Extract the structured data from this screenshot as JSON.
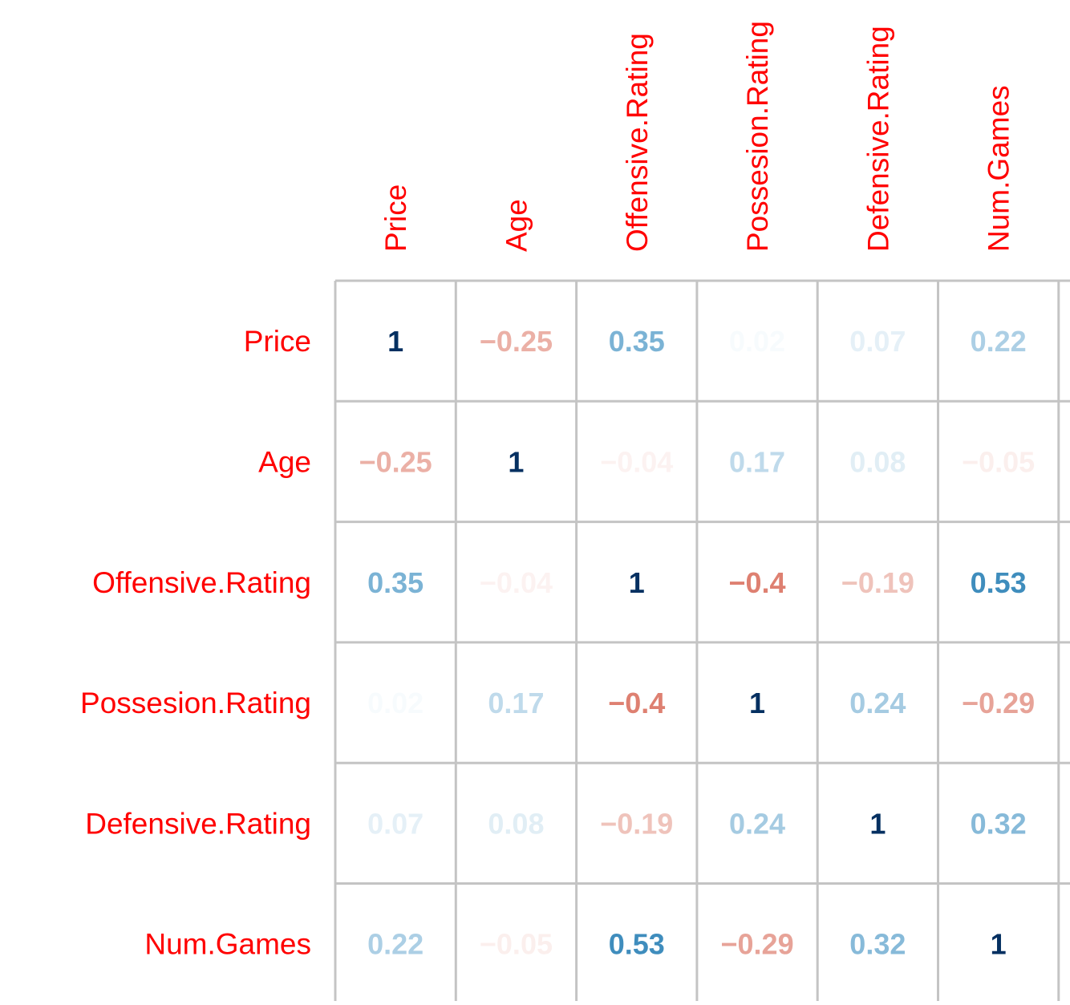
{
  "chart_data": {
    "type": "heatmap",
    "variables": [
      "Price",
      "Age",
      "Offensive.Rating",
      "Possesion.Rating",
      "Defensive.Rating",
      "Num.Games"
    ],
    "matrix": [
      [
        "1",
        "−0.25",
        "0.35",
        "0.02",
        "0.07",
        "0.22"
      ],
      [
        "−0.25",
        "1",
        "−0.04",
        "0.17",
        "0.08",
        "−0.05"
      ],
      [
        "0.35",
        "−0.04",
        "1",
        "−0.4",
        "−0.19",
        "0.53"
      ],
      [
        "0.02",
        "0.17",
        "−0.4",
        "1",
        "0.24",
        "−0.29"
      ],
      [
        "0.07",
        "0.08",
        "−0.19",
        "0.24",
        "1",
        "0.32"
      ],
      [
        "0.22",
        "−0.05",
        "0.53",
        "−0.29",
        "0.32",
        "1"
      ]
    ],
    "value_range": [
      -1,
      1
    ],
    "grid": true,
    "colors": {
      "label": "#ff0000",
      "grid": "#c4c4c4",
      "negative_strong": "#67001f",
      "negative_mid": "#d6604d",
      "neutral": "#ffffff",
      "positive_mid": "#4393c3",
      "positive_strong": "#053061"
    }
  }
}
